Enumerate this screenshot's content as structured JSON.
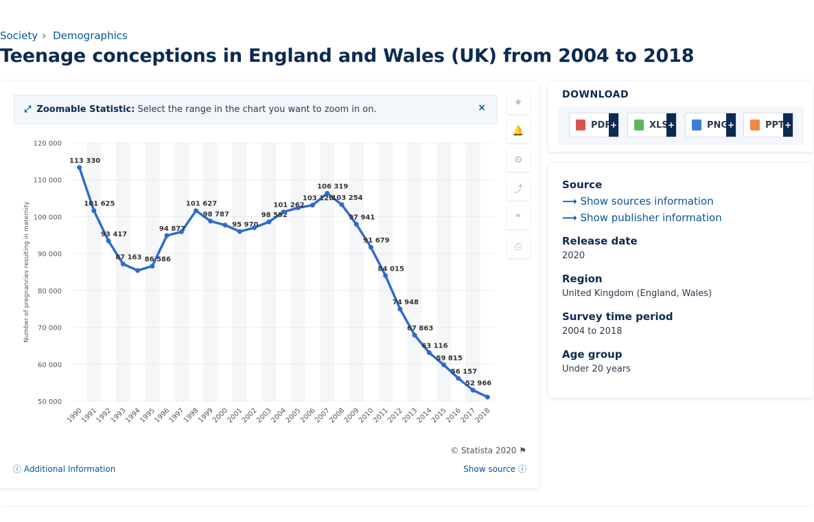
{
  "breadcrumb": {
    "item1": "Society",
    "separator": "›",
    "item2": "Demographics"
  },
  "page_title": "Teenage conceptions in England and Wales (UK) from 2004 to 2018",
  "zoom_banner": {
    "strong": "Zoomable Statistic:",
    "text": "Select the range in the chart you want to zoom in on.",
    "close": "×"
  },
  "tools": {
    "star": "★",
    "bell": "🔔",
    "gear": "⚙",
    "share": "⤴",
    "quote": "❝",
    "print": "⎙"
  },
  "footer": {
    "copyright": "© Statista 2020 ⚑",
    "additional_info": "ⓘ Additional Information",
    "show_source": "Show source ⓘ"
  },
  "download": {
    "title": "DOWNLOAD",
    "buttons": [
      {
        "label": "PDF",
        "plus": "+",
        "color": "#d9534f"
      },
      {
        "label": "XLS",
        "plus": "+",
        "color": "#5cb85c"
      },
      {
        "label": "PNG",
        "plus": "+",
        "color": "#3b7dd8"
      },
      {
        "label": "PPT",
        "plus": "+",
        "color": "#f0883e"
      }
    ]
  },
  "meta": {
    "source_label": "Source",
    "source_link": "Show sources information",
    "publisher_link": "Show publisher information",
    "release_label": "Release date",
    "release_value": "2020",
    "region_label": "Region",
    "region_value": "United Kingdom (England, Wales)",
    "period_label": "Survey time period",
    "period_value": "2004 to 2018",
    "age_label": "Age group",
    "age_value": "Under 20 years"
  },
  "colors": {
    "line": "#2f6bcc",
    "title": "#0b2b50",
    "link": "#0b5394"
  },
  "chart_data": {
    "type": "line",
    "ylabel": "Number of pregnancies resulting in maternity",
    "ylim": [
      50000,
      120000
    ],
    "yticks": [
      50000,
      60000,
      70000,
      80000,
      90000,
      100000,
      110000,
      120000
    ],
    "ytick_labels": [
      "50 000",
      "60 000",
      "70 000",
      "80 000",
      "90 000",
      "100 000",
      "110 000",
      "120 000"
    ],
    "grid": true,
    "series": [
      {
        "x": [
          "1990",
          "1991",
          "1992",
          "1993",
          "1994",
          "1995",
          "1996",
          "1997",
          "1998",
          "1999",
          "2000",
          "2001",
          "2002",
          "2003",
          "2004",
          "2005",
          "2006",
          "2007",
          "2008",
          "2009",
          "2010",
          "2011",
          "2012",
          "2013",
          "2014",
          "2015",
          "2016",
          "2017",
          "2018"
        ],
        "values": [
          113330,
          101625,
          93417,
          87163,
          85400,
          86586,
          94872,
          95900,
          101627,
          98787,
          97700,
          95970,
          97000,
          98592,
          101262,
          102400,
          103120,
          106319,
          103254,
          97941,
          91679,
          84015,
          74948,
          67863,
          63116,
          59815,
          56157,
          52966,
          51100
        ],
        "labels": [
          "113 330",
          "101 625",
          "93 417",
          "87 163",
          "",
          "86 586",
          "94 872",
          "",
          "101 627",
          "98 787",
          "",
          "95 970",
          "",
          "98 592",
          "101 262",
          "",
          "103 120",
          "106 319",
          "103 254",
          "97 941",
          "91 679",
          "84 015",
          "74 948",
          "67 863",
          "63 116",
          "59 815",
          "56 157",
          "52 966",
          ""
        ]
      }
    ]
  }
}
